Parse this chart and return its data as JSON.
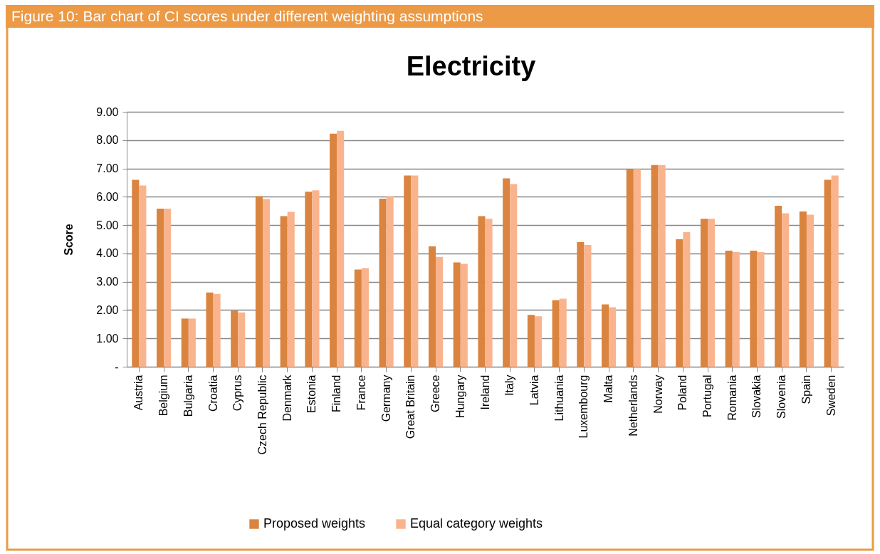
{
  "chart_data": {
    "type": "bar",
    "title": "Electricity",
    "ylabel": "Score",
    "annotations": [
      "Figure 10: Bar chart of CI scores under different weighting assumptions"
    ],
    "categories": [
      "Austria",
      "Belgium",
      "Bulgaria",
      "Croatia",
      "Cyprus",
      "Czech Republic",
      "Denmark",
      "Estonia",
      "Finland",
      "France",
      "Germany",
      "Great Britain",
      "Greece",
      "Hungary",
      "Ireland",
      "Italy",
      "Latvia",
      "Lithuania",
      "Luxembourg",
      "Malta",
      "Netherlands",
      "Norway",
      "Poland",
      "Portugal",
      "Romania",
      "Slovakia",
      "Slovenia",
      "Spain",
      "Sweden"
    ],
    "series": [
      {
        "name": "Proposed weights",
        "color": "#da843f",
        "values": [
          6.6,
          5.58,
          1.7,
          2.62,
          1.98,
          6.02,
          5.32,
          6.18,
          8.23,
          3.43,
          5.93,
          6.75,
          4.25,
          3.68,
          5.32,
          6.65,
          1.83,
          2.35,
          4.4,
          2.2,
          6.98,
          7.12,
          4.5,
          5.22,
          4.1,
          4.1,
          5.68,
          5.48,
          6.6
        ]
      },
      {
        "name": "Equal category weights",
        "color": "#f9b48e",
        "values": [
          6.4,
          5.58,
          1.7,
          2.57,
          1.92,
          5.92,
          5.47,
          6.23,
          8.33,
          3.48,
          6.02,
          6.75,
          3.88,
          3.63,
          5.22,
          6.45,
          1.78,
          2.4,
          4.3,
          2.1,
          6.98,
          7.12,
          4.75,
          5.22,
          4.05,
          4.05,
          5.42,
          5.37,
          6.75
        ]
      }
    ],
    "ylim": [
      0,
      9
    ],
    "yticks": [
      {
        "value": 0,
        "label": "-"
      },
      {
        "value": 1,
        "label": "1.00"
      },
      {
        "value": 2,
        "label": "2.00"
      },
      {
        "value": 3,
        "label": "3.00"
      },
      {
        "value": 4,
        "label": "4.00"
      },
      {
        "value": 5,
        "label": "5.00"
      },
      {
        "value": 6,
        "label": "6.00"
      },
      {
        "value": 7,
        "label": "7.00"
      },
      {
        "value": 8,
        "label": "8.00"
      },
      {
        "value": 9,
        "label": "9.00"
      }
    ],
    "grid": "y",
    "legend": "bottom"
  }
}
